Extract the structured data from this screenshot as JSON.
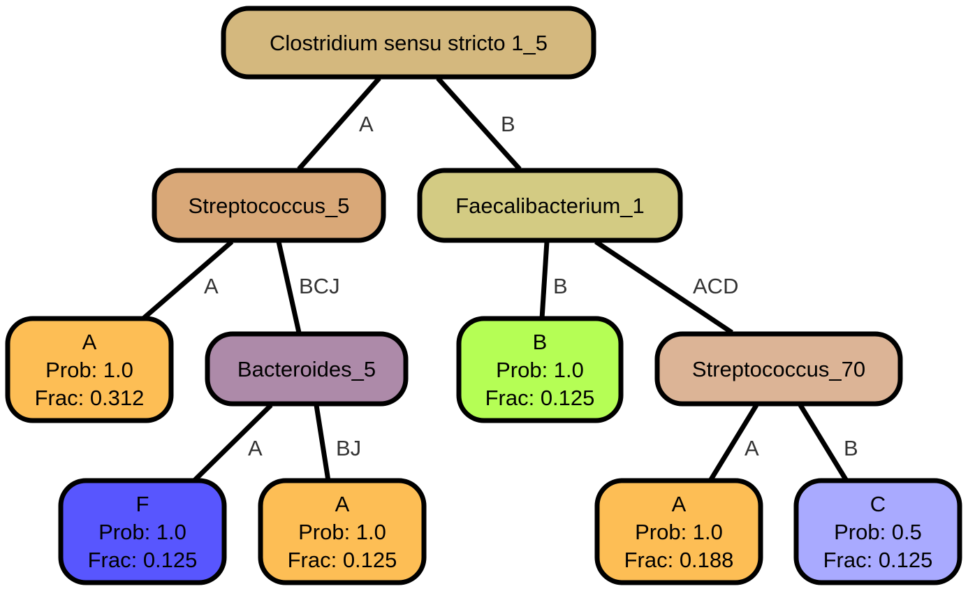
{
  "colors": {
    "root": "#d4b87e",
    "streptococcus_5": "#d9a878",
    "faecalibacterium_1": "#d3cb83",
    "bacteroides_5": "#ad8aa9",
    "streptococcus_70": "#dcb496",
    "leaf_A": "#fdbe55",
    "leaf_B": "#b5fe55",
    "leaf_F": "#5856fe",
    "leaf_C": "#a9aaff"
  },
  "nodes": [
    {
      "id": "root",
      "lines": [
        "Clostridium sensu stricto 1_5"
      ],
      "color": "#d4b87e"
    },
    {
      "id": "strep5",
      "lines": [
        "Streptococcus_5"
      ],
      "color": "#d9a878"
    },
    {
      "id": "faec1",
      "lines": [
        "Faecalibacterium_1"
      ],
      "color": "#d3cb83"
    },
    {
      "id": "leafA1",
      "lines": [
        "A",
        "Prob: 1.0",
        "Frac: 0.312"
      ],
      "color": "#fdbe55"
    },
    {
      "id": "bact5",
      "lines": [
        "Bacteroides_5"
      ],
      "color": "#ad8aa9"
    },
    {
      "id": "leafB1",
      "lines": [
        "B",
        "Prob: 1.0",
        "Frac: 0.125"
      ],
      "color": "#b5fe55"
    },
    {
      "id": "strep70",
      "lines": [
        "Streptococcus_70"
      ],
      "color": "#dcb496"
    },
    {
      "id": "leafF",
      "lines": [
        "F",
        "Prob: 1.0",
        "Frac: 0.125"
      ],
      "color": "#5856fe"
    },
    {
      "id": "leafA2",
      "lines": [
        "A",
        "Prob: 1.0",
        "Frac: 0.125"
      ],
      "color": "#fdbe55"
    },
    {
      "id": "leafA3",
      "lines": [
        "A",
        "Prob: 1.0",
        "Frac: 0.188"
      ],
      "color": "#fdbe55"
    },
    {
      "id": "leafC",
      "lines": [
        "C",
        "Prob: 0.5",
        "Frac: 0.125"
      ],
      "color": "#a9aaff"
    }
  ],
  "edges": [
    {
      "from": "root",
      "to": "strep5",
      "label": "A"
    },
    {
      "from": "root",
      "to": "faec1",
      "label": "B"
    },
    {
      "from": "strep5",
      "to": "leafA1",
      "label": "A"
    },
    {
      "from": "strep5",
      "to": "bact5",
      "label": "BCJ"
    },
    {
      "from": "faec1",
      "to": "leafB1",
      "label": "B"
    },
    {
      "from": "faec1",
      "to": "strep70",
      "label": "ACD"
    },
    {
      "from": "bact5",
      "to": "leafF",
      "label": "A"
    },
    {
      "from": "bact5",
      "to": "leafA2",
      "label": "BJ"
    },
    {
      "from": "strep70",
      "to": "leafA3",
      "label": "A"
    },
    {
      "from": "strep70",
      "to": "leafC",
      "label": "B"
    }
  ]
}
